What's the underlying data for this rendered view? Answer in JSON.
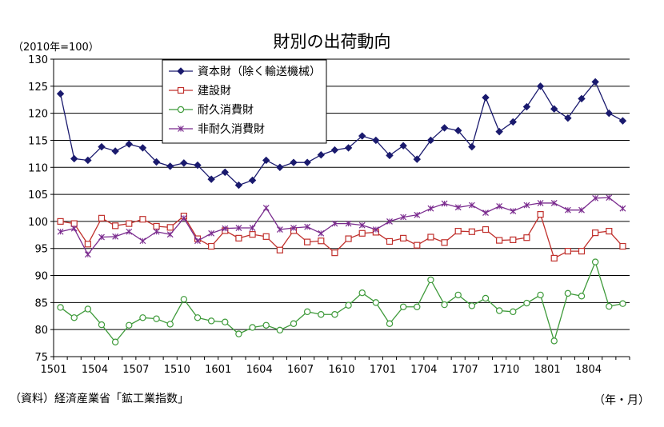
{
  "title": "財別の出荷動向",
  "unit_label": "（2010年=100）",
  "source_label": "（資料）経済産業省「鉱工業指数」",
  "x_unit_label": "（年・月）",
  "chart_data": {
    "type": "line",
    "ylim": [
      75,
      130
    ],
    "yticks": [
      75,
      80,
      85,
      90,
      95,
      100,
      105,
      110,
      115,
      120,
      125,
      130
    ],
    "x_tick_labels": [
      "1501",
      "1504",
      "1507",
      "1510",
      "1601",
      "1604",
      "1607",
      "1610",
      "1701",
      "1704",
      "1707",
      "1710",
      "1801",
      "1804"
    ],
    "x": [
      "1501",
      "1502",
      "1503",
      "1504",
      "1505",
      "1506",
      "1507",
      "1508",
      "1509",
      "1510",
      "1511",
      "1512",
      "1601",
      "1602",
      "1603",
      "1604",
      "1605",
      "1606",
      "1607",
      "1608",
      "1609",
      "1610",
      "1611",
      "1612",
      "1701",
      "1702",
      "1703",
      "1704",
      "1705",
      "1706",
      "1707",
      "1708",
      "1709",
      "1710",
      "1711",
      "1712",
      "1801",
      "1802",
      "1803",
      "1804",
      "1805",
      "1806"
    ],
    "grid": "horizontal",
    "legend_position": "top-left",
    "series": [
      {
        "name": "資本財（除く輸送機械）",
        "color": "#1a1a6e",
        "marker": "diamond",
        "values": [
          123.6,
          111.6,
          111.3,
          113.8,
          113.0,
          114.3,
          113.6,
          111.0,
          110.2,
          110.8,
          110.4,
          107.8,
          109.1,
          106.7,
          107.6,
          111.3,
          110.0,
          110.9,
          110.9,
          112.3,
          113.2,
          113.6,
          115.8,
          115.0,
          112.2,
          114.0,
          111.5,
          115.0,
          117.3,
          116.8,
          113.8,
          122.9,
          116.6,
          118.4,
          121.2,
          125.0,
          120.8,
          119.1,
          122.7,
          125.8,
          120.0,
          118.6
        ]
      },
      {
        "name": "建設財",
        "color": "#c0302c",
        "marker": "square",
        "values": [
          100.0,
          99.6,
          95.8,
          100.6,
          99.2,
          99.6,
          100.4,
          99.1,
          98.9,
          101.0,
          96.8,
          95.4,
          98.3,
          96.9,
          97.6,
          97.2,
          94.7,
          98.3,
          96.2,
          96.4,
          94.2,
          96.8,
          97.8,
          98.0,
          96.3,
          96.9,
          95.6,
          97.1,
          96.1,
          98.2,
          98.1,
          98.5,
          96.5,
          96.6,
          97.0,
          101.3,
          93.2,
          94.5,
          94.5,
          97.9,
          98.2,
          95.4
        ]
      },
      {
        "name": "耐久消費財",
        "color": "#3e9a3a",
        "marker": "circle",
        "values": [
          84.1,
          82.2,
          83.8,
          80.9,
          77.7,
          80.8,
          82.2,
          82.0,
          81.0,
          85.6,
          82.2,
          81.6,
          81.4,
          79.2,
          80.4,
          80.8,
          79.9,
          81.1,
          83.3,
          82.8,
          82.8,
          84.5,
          86.8,
          85.0,
          81.1,
          84.2,
          84.2,
          89.2,
          84.6,
          86.4,
          84.4,
          85.8,
          83.5,
          83.3,
          84.9,
          86.4,
          77.9,
          86.7,
          86.2,
          92.5,
          84.3,
          84.8
        ]
      },
      {
        "name": "非耐久消費財",
        "color": "#7a2b8e",
        "marker": "x",
        "values": [
          98.1,
          98.7,
          93.9,
          97.1,
          97.2,
          98.1,
          96.4,
          98.1,
          97.6,
          100.6,
          96.4,
          97.8,
          98.7,
          98.8,
          98.8,
          102.5,
          98.5,
          98.8,
          99.0,
          97.8,
          99.6,
          99.6,
          99.3,
          98.5,
          100.0,
          100.8,
          101.2,
          102.4,
          103.3,
          102.6,
          103.0,
          101.6,
          102.8,
          101.9,
          103.0,
          103.4,
          103.4,
          102.1,
          102.1,
          104.3,
          104.4,
          102.4
        ]
      }
    ]
  }
}
